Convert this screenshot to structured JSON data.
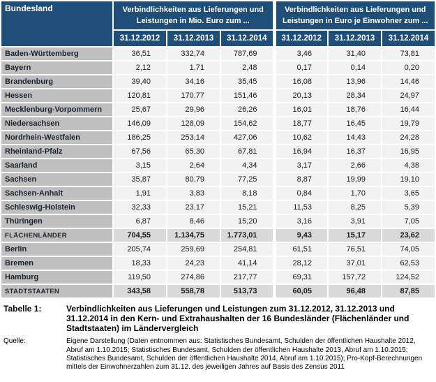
{
  "colors": {
    "header_blue": "#1F4E79",
    "label_gray": "#BFBFBF",
    "cell_light": "#F2F2F2",
    "summary_gray": "#D9D9D9",
    "grid_white": "#FFFFFF"
  },
  "table": {
    "corner_header": "Bundesland",
    "group_headers": [
      "Verbindlichkeiten aus Lieferungen und Leistungen in Mio. Euro zum ...",
      "Verbindlichkeiten aus Lieferungen und Leistungen in Euro je Einwohner zum ..."
    ],
    "date_columns": [
      "31.12.2012",
      "31.12.2013",
      "31.12.2014"
    ],
    "rows": [
      {
        "label": "Baden-Württemberg",
        "values": [
          "36,51",
          "332,74",
          "787,69",
          "3,46",
          "31,40",
          "73,81"
        ],
        "summary": false
      },
      {
        "label": "Bayern",
        "values": [
          "2,12",
          "1,71",
          "2,48",
          "0,17",
          "0,14",
          "0,20"
        ],
        "summary": false
      },
      {
        "label": "Brandenburg",
        "values": [
          "39,40",
          "34,16",
          "35,45",
          "16,08",
          "13,96",
          "14,46"
        ],
        "summary": false
      },
      {
        "label": "Hessen",
        "values": [
          "120,81",
          "170,77",
          "151,46",
          "20,13",
          "28,34",
          "24,97"
        ],
        "summary": false
      },
      {
        "label": "Mecklenburg-Vorpommern",
        "values": [
          "25,67",
          "29,96",
          "26,26",
          "16,01",
          "18,76",
          "16,44"
        ],
        "summary": false
      },
      {
        "label": "Niedersachsen",
        "values": [
          "146,09",
          "128,09",
          "154,62",
          "18,77",
          "16,45",
          "19,79"
        ],
        "summary": false
      },
      {
        "label": "Nordrhein-Westfalen",
        "values": [
          "186,25",
          "253,14",
          "427,06",
          "10,62",
          "14,43",
          "24,28"
        ],
        "summary": false
      },
      {
        "label": "Rheinland-Pfalz",
        "values": [
          "67,56",
          "65,30",
          "67,81",
          "16,94",
          "16,37",
          "16,95"
        ],
        "summary": false
      },
      {
        "label": "Saarland",
        "values": [
          "3,15",
          "2,64",
          "4,34",
          "3,17",
          "2,66",
          "4,38"
        ],
        "summary": false
      },
      {
        "label": "Sachsen",
        "values": [
          "35,87",
          "80,79",
          "77,25",
          "8,87",
          "19,99",
          "19,10"
        ],
        "summary": false
      },
      {
        "label": "Sachsen-Anhalt",
        "values": [
          "1,91",
          "3,83",
          "8,18",
          "0,84",
          "1,70",
          "3,65"
        ],
        "summary": false
      },
      {
        "label": "Schleswig-Holstein",
        "values": [
          "32,33",
          "23,17",
          "15,21",
          "11,53",
          "8,25",
          "5,39"
        ],
        "summary": false
      },
      {
        "label": "Thüringen",
        "values": [
          "6,87",
          "8,46",
          "15,20",
          "3,16",
          "3,91",
          "7,05"
        ],
        "summary": false
      },
      {
        "label": "FLÄCHENLÄNDER",
        "values": [
          "704,55",
          "1.134,75",
          "1.773,01",
          "9,43",
          "15,17",
          "23,62"
        ],
        "summary": true
      },
      {
        "label": "Berlin",
        "values": [
          "205,74",
          "259,69",
          "254,81",
          "61,51",
          "76,51",
          "74,05"
        ],
        "summary": false
      },
      {
        "label": "Bremen",
        "values": [
          "18,33",
          "24,23",
          "41,14",
          "28,12",
          "37,01",
          "62,53"
        ],
        "summary": false
      },
      {
        "label": "Hamburg",
        "values": [
          "119,50",
          "274,86",
          "217,77",
          "69,31",
          "157,72",
          "124,52"
        ],
        "summary": false
      },
      {
        "label": "STADTSTAATEN",
        "values": [
          "343,58",
          "558,78",
          "513,73",
          "60,05",
          "96,48",
          "87,85"
        ],
        "summary": true
      }
    ]
  },
  "caption": {
    "label": "Tabelle 1:",
    "text": "Verbindlichkeiten aus Lieferungen und Leistungen zum 31.12.2012, 31.12.2013 und 31.12.2014 in den Kern- und Extrahaushalten der 16 Bundesländer (Flächenländer und Stadtstaaten) im Ländervergleich"
  },
  "source": {
    "label": "Quelle:",
    "text": "Eigene Darstellung (Daten entnommen aus: Statistisches Bundesamt, Schulden der öffentlichen Haushalte 2012, Abruf am 1.10.2015; Statistisches Bundesamt, Schulden der öffentlichen Haushalte 2013, Abruf am 1.10.2015; Statistisches Bundesamt, Schulden der öffentlichen Haushalte 2014, Abruf am 1.10.2015); Pro-Kopf-Berechnungen mittels der Einwohnerzahlen zum 31.12. des jeweiligen Jahres auf Basis des Zensus 2011"
  }
}
